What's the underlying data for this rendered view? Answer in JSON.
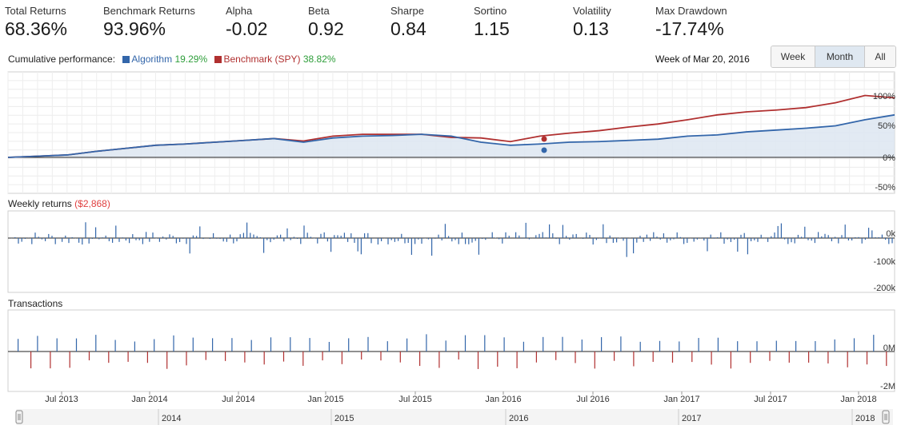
{
  "stats": [
    {
      "label": "Total Returns",
      "value": "68.36%"
    },
    {
      "label": "Benchmark Returns",
      "value": "93.96%"
    },
    {
      "label": "Alpha",
      "value": "-0.02"
    },
    {
      "label": "Beta",
      "value": "0.92"
    },
    {
      "label": "Sharpe",
      "value": "0.84"
    },
    {
      "label": "Sortino",
      "value": "1.15"
    },
    {
      "label": "Volatility",
      "value": "0.13"
    },
    {
      "label": "Max Drawdown",
      "value": "-17.74%"
    }
  ],
  "performance": {
    "label": "Cumulative performance:",
    "algorithm": {
      "name": "Algorithm",
      "pct": "19.29%",
      "color": "#3366aa"
    },
    "benchmark": {
      "name": "Benchmark (SPY)",
      "pct": "38.82%",
      "color": "#b03030"
    },
    "week_label": "Week of Mar 20, 2016"
  },
  "range_buttons": [
    {
      "label": "Week",
      "active": false
    },
    {
      "label": "Month",
      "active": true
    },
    {
      "label": "All",
      "active": false
    }
  ],
  "weekly_returns": {
    "label": "Weekly returns",
    "value": "($2,868)"
  },
  "transactions": {
    "label": "Transactions"
  },
  "chart_data": [
    {
      "type": "line",
      "title": "Cumulative performance",
      "ylim": [
        -50,
        100
      ],
      "yticks": [
        "100%",
        "50%",
        "0%",
        "-50%"
      ],
      "x": [
        "2013-03",
        "2013-05",
        "2013-07",
        "2013-09",
        "2013-11",
        "2014-01",
        "2014-03",
        "2014-05",
        "2014-07",
        "2014-09",
        "2014-11",
        "2015-01",
        "2015-03",
        "2015-05",
        "2015-07",
        "2015-09",
        "2015-11",
        "2016-01",
        "2016-03",
        "2016-05",
        "2016-07",
        "2016-09",
        "2016-11",
        "2017-01",
        "2017-03",
        "2017-05",
        "2017-07",
        "2017-09",
        "2017-11",
        "2018-01",
        "2018-03"
      ],
      "series": [
        {
          "name": "Algorithm",
          "values": [
            0,
            2,
            4,
            10,
            15,
            20,
            22,
            25,
            28,
            31,
            25,
            32,
            35,
            36,
            38,
            35,
            25,
            20,
            22,
            25,
            26,
            28,
            30,
            35,
            37,
            42,
            45,
            48,
            52,
            62,
            70
          ]
        },
        {
          "name": "Benchmark (SPY)",
          "values": [
            0,
            2,
            4,
            10,
            15,
            20,
            22,
            25,
            28,
            31,
            27,
            35,
            38,
            38,
            38,
            33,
            32,
            26,
            35,
            40,
            44,
            50,
            55,
            62,
            70,
            75,
            78,
            82,
            90,
            102,
            98
          ]
        }
      ],
      "grid": true
    },
    {
      "type": "bar",
      "title": "Weekly returns",
      "yticks": [
        "0k",
        "-100k",
        "-200k"
      ]
    },
    {
      "type": "bar",
      "title": "Transactions",
      "yticks": [
        "0M",
        "-2M"
      ]
    }
  ],
  "x_axis": {
    "ticks": [
      "Jul 2013",
      "Jan 2014",
      "Jul 2014",
      "Jan 2015",
      "Jul 2015",
      "Jan 2016",
      "Jul 2016",
      "Jan 2017",
      "Jul 2017",
      "Jan 2018"
    ]
  },
  "navigator": {
    "years": [
      "2014",
      "2015",
      "2016",
      "2017",
      "2018"
    ]
  }
}
